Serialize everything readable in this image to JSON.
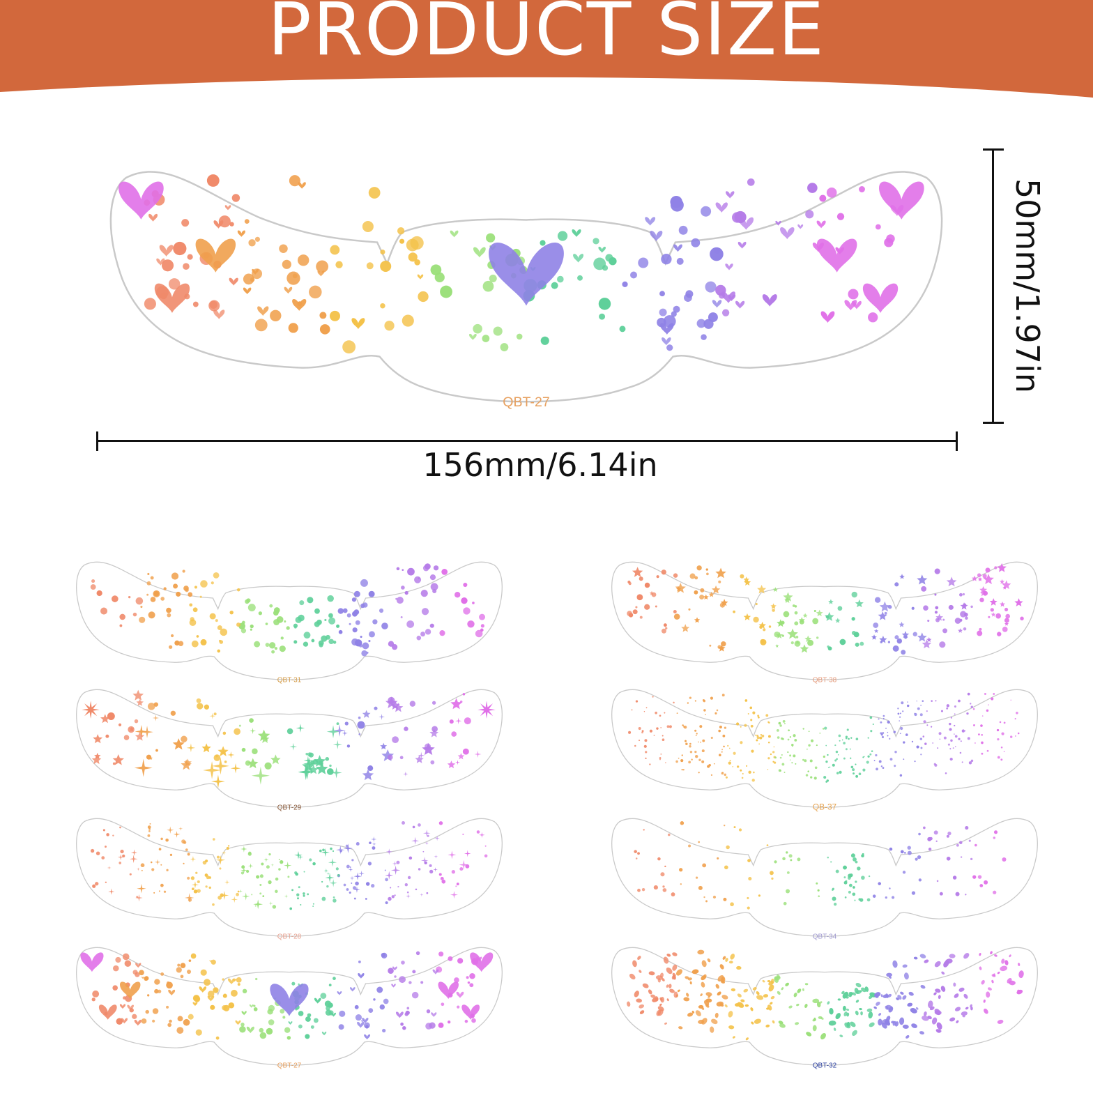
{
  "banner": {
    "title": "PRODUCT SIZE",
    "color": "#d2683c"
  },
  "hero": {
    "code": "QBT-27"
  },
  "dimensions": {
    "width": "156mm/6.14in",
    "height": "50mm/1.97in"
  },
  "variants": [
    {
      "code": "QBT-31",
      "pattern": "dots"
    },
    {
      "code": "QBT-38",
      "pattern": "stars"
    },
    {
      "code": "QBT-29",
      "pattern": "sparkle-stars"
    },
    {
      "code": "QB-37",
      "pattern": "fine-dots"
    },
    {
      "code": "QBT-28",
      "pattern": "twinkles"
    },
    {
      "code": "QBT-34",
      "pattern": "sparse-dots"
    },
    {
      "code": "QBT-27",
      "pattern": "hearts"
    },
    {
      "code": "QBT-32",
      "pattern": "gems"
    }
  ],
  "palette": [
    "#f08a6a",
    "#f0a04c",
    "#f4c24a",
    "#9be07a",
    "#5fd09a",
    "#8f82e6",
    "#b57be8",
    "#e070e8"
  ]
}
